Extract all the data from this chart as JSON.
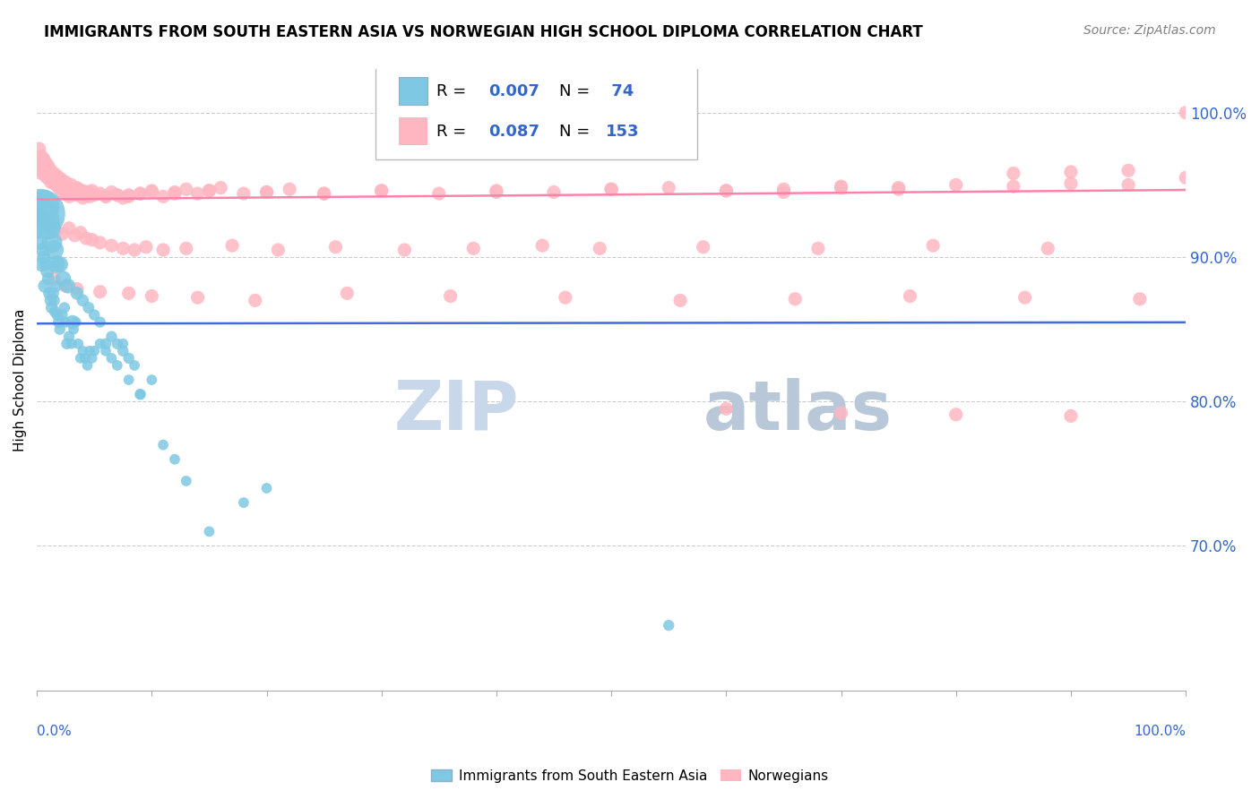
{
  "title": "IMMIGRANTS FROM SOUTH EASTERN ASIA VS NORWEGIAN HIGH SCHOOL DIPLOMA CORRELATION CHART",
  "source": "Source: ZipAtlas.com",
  "ylabel": "High School Diploma",
  "legend_blue_R": "R = 0.007",
  "legend_blue_N": "N =  74",
  "legend_pink_R": "R = 0.087",
  "legend_pink_N": "N = 153",
  "legend_label_blue": "Immigrants from South Eastern Asia",
  "legend_label_pink": "Norwegians",
  "blue_color": "#7EC8E3",
  "pink_color": "#FFB6C1",
  "blue_line_color": "#4169E1",
  "pink_line_color": "#FF82AB",
  "watermark_zip": "ZIP",
  "watermark_atlas": "atlas",
  "watermark_color": "#C8D8EA",
  "blue_scatter_x": [
    0.002,
    0.003,
    0.004,
    0.005,
    0.006,
    0.007,
    0.008,
    0.009,
    0.01,
    0.011,
    0.012,
    0.013,
    0.014,
    0.015,
    0.016,
    0.017,
    0.018,
    0.019,
    0.02,
    0.022,
    0.024,
    0.025,
    0.026,
    0.028,
    0.03,
    0.032,
    0.034,
    0.036,
    0.038,
    0.04,
    0.042,
    0.044,
    0.046,
    0.048,
    0.05,
    0.055,
    0.06,
    0.065,
    0.07,
    0.075,
    0.08,
    0.085,
    0.09,
    0.1,
    0.11,
    0.12,
    0.13,
    0.15,
    0.18,
    0.2,
    0.003,
    0.005,
    0.007,
    0.009,
    0.011,
    0.013,
    0.015,
    0.017,
    0.02,
    0.023,
    0.027,
    0.031,
    0.035,
    0.04,
    0.045,
    0.05,
    0.055,
    0.06,
    0.065,
    0.07,
    0.075,
    0.08,
    0.09,
    0.55
  ],
  "blue_scatter_y": [
    0.92,
    0.91,
    0.895,
    0.905,
    0.9,
    0.88,
    0.895,
    0.89,
    0.885,
    0.875,
    0.87,
    0.865,
    0.875,
    0.87,
    0.862,
    0.88,
    0.86,
    0.855,
    0.85,
    0.86,
    0.865,
    0.855,
    0.84,
    0.845,
    0.84,
    0.85,
    0.855,
    0.84,
    0.83,
    0.835,
    0.83,
    0.825,
    0.835,
    0.83,
    0.835,
    0.84,
    0.835,
    0.83,
    0.825,
    0.84,
    0.815,
    0.825,
    0.805,
    0.815,
    0.77,
    0.76,
    0.745,
    0.71,
    0.73,
    0.74,
    0.93,
    0.935,
    0.93,
    0.925,
    0.92,
    0.91,
    0.905,
    0.895,
    0.895,
    0.885,
    0.88,
    0.855,
    0.875,
    0.87,
    0.865,
    0.86,
    0.855,
    0.84,
    0.845,
    0.84,
    0.835,
    0.83,
    0.805,
    0.645
  ],
  "blue_scatter_sizes": [
    20,
    18,
    17,
    16,
    15,
    15,
    14,
    14,
    13,
    13,
    12,
    12,
    12,
    11,
    11,
    11,
    11,
    11,
    10,
    10,
    10,
    10,
    10,
    10,
    9,
    9,
    9,
    9,
    9,
    9,
    9,
    9,
    9,
    9,
    9,
    9,
    9,
    9,
    9,
    9,
    9,
    9,
    9,
    9,
    9,
    9,
    9,
    9,
    9,
    9,
    200,
    90,
    60,
    50,
    40,
    35,
    30,
    25,
    22,
    20,
    18,
    16,
    14,
    12,
    11,
    10,
    10,
    10,
    10,
    10,
    10,
    10,
    10,
    10
  ],
  "pink_scatter_x": [
    0.001,
    0.002,
    0.003,
    0.004,
    0.005,
    0.006,
    0.007,
    0.008,
    0.009,
    0.01,
    0.011,
    0.012,
    0.013,
    0.014,
    0.015,
    0.016,
    0.017,
    0.018,
    0.019,
    0.02,
    0.022,
    0.024,
    0.025,
    0.026,
    0.028,
    0.03,
    0.032,
    0.034,
    0.036,
    0.038,
    0.04,
    0.042,
    0.044,
    0.046,
    0.048,
    0.05,
    0.055,
    0.06,
    0.065,
    0.07,
    0.075,
    0.08,
    0.09,
    0.1,
    0.11,
    0.12,
    0.13,
    0.14,
    0.15,
    0.16,
    0.18,
    0.2,
    0.22,
    0.25,
    0.3,
    0.35,
    0.4,
    0.45,
    0.5,
    0.55,
    0.6,
    0.65,
    0.7,
    0.75,
    0.8,
    0.85,
    0.9,
    0.95,
    1.0,
    0.002,
    0.004,
    0.006,
    0.008,
    0.01,
    0.012,
    0.015,
    0.018,
    0.021,
    0.025,
    0.03,
    0.035,
    0.04,
    0.05,
    0.06,
    0.07,
    0.08,
    0.09,
    0.1,
    0.12,
    0.15,
    0.2,
    0.25,
    0.3,
    0.4,
    0.5,
    0.6,
    0.65,
    0.7,
    0.75,
    0.003,
    0.005,
    0.007,
    0.009,
    0.013,
    0.017,
    0.022,
    0.028,
    0.033,
    0.038,
    0.043,
    0.048,
    0.055,
    0.065,
    0.075,
    0.085,
    0.095,
    0.11,
    0.13,
    0.17,
    0.21,
    0.26,
    0.32,
    0.38,
    0.44,
    0.49,
    0.58,
    0.68,
    0.78,
    0.88,
    0.015,
    0.025,
    0.035,
    0.055,
    0.08,
    0.1,
    0.14,
    0.19,
    0.27,
    0.36,
    0.46,
    0.56,
    0.66,
    0.76,
    0.86,
    0.96,
    0.85,
    0.9,
    0.95,
    1.0,
    0.6,
    0.7,
    0.8,
    0.9
  ],
  "pink_scatter_y": [
    0.965,
    0.962,
    0.96,
    0.958,
    0.962,
    0.958,
    0.96,
    0.956,
    0.955,
    0.958,
    0.955,
    0.952,
    0.955,
    0.953,
    0.951,
    0.953,
    0.95,
    0.952,
    0.948,
    0.95,
    0.945,
    0.948,
    0.944,
    0.946,
    0.942,
    0.944,
    0.946,
    0.943,
    0.947,
    0.944,
    0.941,
    0.943,
    0.945,
    0.942,
    0.946,
    0.943,
    0.944,
    0.942,
    0.945,
    0.943,
    0.941,
    0.943,
    0.944,
    0.946,
    0.942,
    0.945,
    0.947,
    0.944,
    0.946,
    0.948,
    0.944,
    0.945,
    0.947,
    0.944,
    0.946,
    0.944,
    0.946,
    0.945,
    0.947,
    0.948,
    0.946,
    0.947,
    0.949,
    0.948,
    0.95,
    0.949,
    0.951,
    0.95,
    1.0,
    0.975,
    0.97,
    0.968,
    0.965,
    0.963,
    0.96,
    0.958,
    0.956,
    0.954,
    0.952,
    0.95,
    0.948,
    0.946,
    0.944,
    0.942,
    0.943,
    0.942,
    0.944,
    0.945,
    0.944,
    0.946,
    0.945,
    0.944,
    0.946,
    0.945,
    0.947,
    0.946,
    0.945,
    0.948,
    0.947,
    0.93,
    0.925,
    0.928,
    0.922,
    0.92,
    0.918,
    0.916,
    0.92,
    0.915,
    0.917,
    0.913,
    0.912,
    0.91,
    0.908,
    0.906,
    0.905,
    0.907,
    0.905,
    0.906,
    0.908,
    0.905,
    0.907,
    0.905,
    0.906,
    0.908,
    0.906,
    0.907,
    0.906,
    0.908,
    0.906,
    0.885,
    0.88,
    0.878,
    0.876,
    0.875,
    0.873,
    0.872,
    0.87,
    0.875,
    0.873,
    0.872,
    0.87,
    0.871,
    0.873,
    0.872,
    0.871,
    0.958,
    0.959,
    0.96,
    0.955,
    0.795,
    0.792,
    0.791,
    0.79
  ]
}
